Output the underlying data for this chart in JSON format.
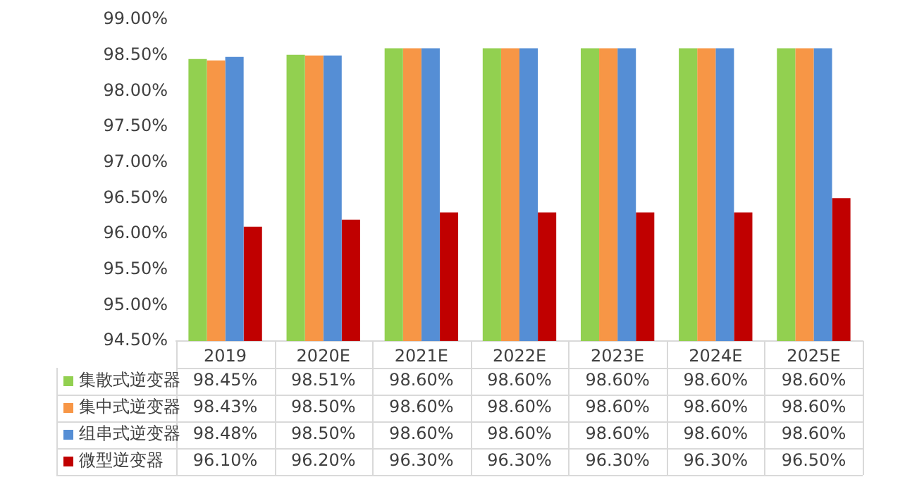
{
  "chart_data": {
    "type": "bar",
    "categories": [
      "2019",
      "2020E",
      "2021E",
      "2022E",
      "2023E",
      "2024E",
      "2025E"
    ],
    "series": [
      {
        "name": "集散式逆变器",
        "color": "#92d050",
        "values": [
          98.45,
          98.51,
          98.6,
          98.6,
          98.6,
          98.6,
          98.6
        ],
        "value_labels": [
          "98.45%",
          "98.51%",
          "98.60%",
          "98.60%",
          "98.60%",
          "98.60%",
          "98.60%"
        ]
      },
      {
        "name": "集中式逆变器",
        "color": "#f79646",
        "values": [
          98.43,
          98.5,
          98.6,
          98.6,
          98.6,
          98.6,
          98.6
        ],
        "value_labels": [
          "98.43%",
          "98.50%",
          "98.60%",
          "98.60%",
          "98.60%",
          "98.60%",
          "98.60%"
        ]
      },
      {
        "name": "组串式逆变器",
        "color": "#558ed5",
        "values": [
          98.48,
          98.5,
          98.6,
          98.6,
          98.6,
          98.6,
          98.6
        ],
        "value_labels": [
          "98.48%",
          "98.50%",
          "98.60%",
          "98.60%",
          "98.60%",
          "98.60%",
          "98.60%"
        ]
      },
      {
        "name": "微型逆变器",
        "color": "#c00000",
        "values": [
          96.1,
          96.2,
          96.3,
          96.3,
          96.3,
          96.3,
          96.5
        ],
        "value_labels": [
          "96.10%",
          "96.20%",
          "96.30%",
          "96.30%",
          "96.30%",
          "96.30%",
          "96.50%"
        ]
      }
    ],
    "ylim": [
      94.5,
      99
    ],
    "yticks": [
      {
        "value": 94.5,
        "label": "94.50%"
      },
      {
        "value": 95,
        "label": "95.00%"
      },
      {
        "value": 95.5,
        "label": "95.50%"
      },
      {
        "value": 96,
        "label": "96.00%"
      },
      {
        "value": 96.5,
        "label": "96.50%"
      },
      {
        "value": 97,
        "label": "97.00%"
      },
      {
        "value": 97.5,
        "label": "97.50%"
      },
      {
        "value": 98,
        "label": "98.00%"
      },
      {
        "value": 98.5,
        "label": "98.50%"
      },
      {
        "value": 99,
        "label": "99.00%"
      }
    ],
    "grid": false,
    "legend": "bottom"
  }
}
